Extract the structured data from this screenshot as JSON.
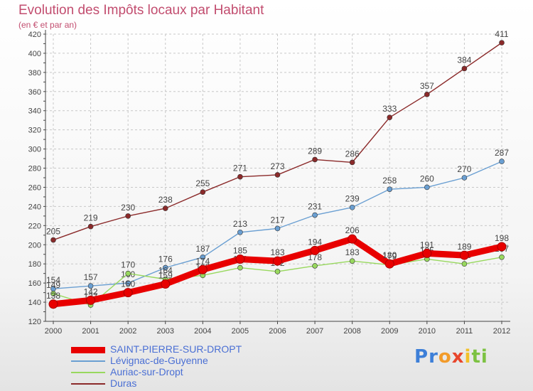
{
  "header": {
    "title": "Evolution des Impôts locaux par Habitant",
    "subtitle": "(en € et par an)"
  },
  "brand": {
    "name": "Proxiti",
    "letters": [
      "P",
      "r",
      "o",
      "x",
      "i",
      "t",
      "i"
    ],
    "colors": [
      "#3d7fd8",
      "#3d7fd8",
      "#f29b2a",
      "#e8462c",
      "#f2c12a",
      "#7cc242",
      "#7cc242"
    ]
  },
  "chart_data": {
    "type": "line",
    "title": "Evolution des Impôts locaux par Habitant",
    "subtitle": "(en € et par an)",
    "x": [
      "2000",
      "2001",
      "2002",
      "2003",
      "2004",
      "2005",
      "2006",
      "2007",
      "2008",
      "2009",
      "2010",
      "2011",
      "2012"
    ],
    "ylim": [
      120,
      420
    ],
    "yticks": [
      120,
      140,
      160,
      180,
      200,
      220,
      240,
      260,
      280,
      300,
      320,
      340,
      360,
      380,
      400,
      420
    ],
    "ytick_labels": [
      "120",
      "140",
      "160",
      "180",
      "200",
      "220",
      "240",
      "260",
      "280",
      "300",
      "320",
      "340",
      "360",
      "380",
      "400",
      "420"
    ],
    "grid": true,
    "legend_position": "bottom-left",
    "series": [
      {
        "name": "Duras",
        "color": "#8b2a2a",
        "values": [
          205,
          219,
          230,
          238,
          255,
          271,
          273,
          289,
          286,
          333,
          357,
          384,
          411
        ],
        "labels": [
          "205",
          "219",
          "230",
          "238",
          "255",
          "271",
          "273",
          "289",
          "286",
          "333",
          "357",
          "384",
          "411"
        ]
      },
      {
        "name": "Lévignac-de-Guyenne",
        "color": "#6a9fd2",
        "values": [
          154,
          157,
          160,
          176,
          187,
          213,
          217,
          231,
          239,
          258,
          260,
          270,
          287
        ],
        "labels": [
          "154",
          "157",
          "160",
          "176",
          "187",
          "213",
          "217",
          "231",
          "239",
          "258",
          "260",
          "270",
          "287"
        ]
      },
      {
        "name": "Auriac-sur-Dropt",
        "color": "#98d85e",
        "values": [
          149,
          137,
          170,
          164,
          168,
          176,
          172,
          178,
          183,
          179,
          185,
          180,
          187
        ],
        "labels": [
          "149",
          "137",
          "170",
          "164",
          "168",
          "176",
          "172",
          "178",
          "183",
          "179",
          "185",
          "180",
          "187"
        ]
      },
      {
        "name": "SAINT-PIERRE-SUR-DROPT",
        "color": "#e80000",
        "values": [
          138,
          142,
          150,
          159,
          174,
          185,
          183,
          194,
          206,
          180,
          191,
          189,
          198
        ],
        "labels": [
          "138",
          "142",
          "150",
          "159",
          "174",
          "185",
          "183",
          "194",
          "206",
          "180",
          "191",
          "189",
          "198"
        ]
      }
    ]
  },
  "legend": {
    "items": [
      {
        "label": "SAINT-PIERRE-SUR-DROPT",
        "color": "#e80000"
      },
      {
        "label": "Lévignac-de-Guyenne",
        "color": "#6a9fd2"
      },
      {
        "label": "Auriac-sur-Dropt",
        "color": "#98d85e"
      },
      {
        "label": "Duras",
        "color": "#8b2a2a"
      }
    ]
  }
}
